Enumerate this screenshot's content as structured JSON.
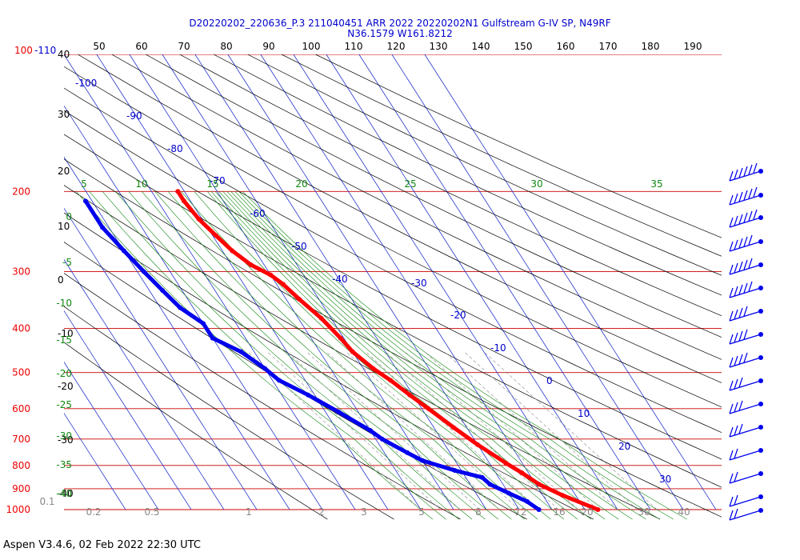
{
  "footer": "Aspen V3.4.6, 02 Feb 2022  22:30 UTC",
  "chart_data": {
    "type": "skew-t",
    "title": "D20220202_220636_P.3 211040451 ARR 2022 20220202N1 Gulfstream G-IV SP, N49RF",
    "subtitle": "N36.1579 W161.8212",
    "pressure_levels": [
      100,
      200,
      300,
      400,
      500,
      600,
      700,
      800,
      900,
      1000
    ],
    "top_pressure_label": "100",
    "top_pressure_suffix": "-110",
    "theta_labels": [
      "50",
      "60",
      "70",
      "80",
      "90",
      "100",
      "110",
      "120",
      "130",
      "140",
      "150",
      "160",
      "170",
      "180",
      "190"
    ],
    "height_labels": [
      "40",
      "30",
      "20",
      "10",
      "0",
      "-10",
      "-20",
      "-30",
      "-40"
    ],
    "isotherm_labels": [
      "-100",
      "-90",
      "-80",
      "-70",
      "-60",
      "-50",
      "-40",
      "-30",
      "-20",
      "-10",
      "0",
      "10",
      "20",
      "30"
    ],
    "saturation_theta_labels": [
      "5",
      "10",
      "15",
      "20",
      "25",
      "30",
      "35"
    ],
    "left_green_labels": [
      "0",
      "-5",
      "-10",
      "-15",
      "-20",
      "-25",
      "-30",
      "-35",
      "-40"
    ],
    "mixing_ratio_labels": [
      "0.1",
      "0.2",
      "0.5",
      "1",
      "2",
      "3",
      "5",
      "8",
      "12",
      "16",
      "20",
      "30",
      "40"
    ],
    "temperature_profile": [
      [
        200,
        -52
      ],
      [
        210,
        -52
      ],
      [
        230,
        -51
      ],
      [
        250,
        -49
      ],
      [
        270,
        -47
      ],
      [
        290,
        -44
      ],
      [
        305,
        -40
      ],
      [
        320,
        -38
      ],
      [
        345,
        -36
      ],
      [
        380,
        -33
      ],
      [
        420,
        -31
      ],
      [
        450,
        -30
      ],
      [
        490,
        -27
      ],
      [
        520,
        -24
      ],
      [
        560,
        -21
      ],
      [
        600,
        -18
      ],
      [
        660,
        -14
      ],
      [
        720,
        -10
      ],
      [
        790,
        -5
      ],
      [
        830,
        -2
      ],
      [
        880,
        1
      ],
      [
        930,
        6
      ],
      [
        1000,
        14
      ]
    ],
    "dewpoint_profile": [
      [
        210,
        -82
      ],
      [
        240,
        -82
      ],
      [
        270,
        -80
      ],
      [
        300,
        -78
      ],
      [
        330,
        -76
      ],
      [
        360,
        -74
      ],
      [
        390,
        -70
      ],
      [
        420,
        -70
      ],
      [
        450,
        -64
      ],
      [
        490,
        -60
      ],
      [
        520,
        -58
      ],
      [
        560,
        -52
      ],
      [
        610,
        -46
      ],
      [
        670,
        -40
      ],
      [
        700,
        -38
      ],
      [
        750,
        -33
      ],
      [
        780,
        -30
      ],
      [
        820,
        -22
      ],
      [
        850,
        -15
      ],
      [
        880,
        -14
      ],
      [
        920,
        -10
      ],
      [
        960,
        -6
      ],
      [
        1000,
        -4
      ]
    ],
    "grid": true,
    "legend": "none"
  }
}
